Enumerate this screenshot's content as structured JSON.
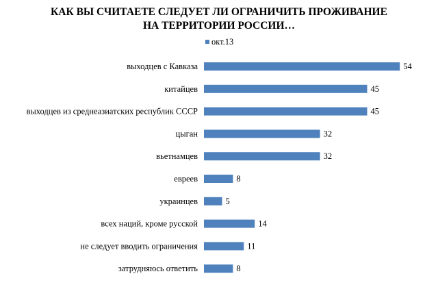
{
  "chart_data": {
    "type": "bar",
    "orientation": "horizontal",
    "title": "КАК ВЫ СЧИТАЕТЕ СЛЕДУЕТ ЛИ ОГРАНИЧИТЬ ПРОЖИВАНИЕ НА ТЕРРИТОРИИ РОССИИ…",
    "title_lines": [
      "КАК ВЫ СЧИТАЕТЕ СЛЕДУЕТ ЛИ ОГРАНИЧИТЬ ПРОЖИВАНИЕ",
      "НА ТЕРРИТОРИИ РОССИИ…"
    ],
    "categories": [
      "выходцев с Кавказа",
      "китайцев",
      "выходцев из среднеазиатских республик СССР",
      "цыган",
      "вьетнамцев",
      "евреев",
      "украинцев",
      "всех наций, кроме русской",
      "не следует вводить ограничения",
      "затрудняюсь ответить"
    ],
    "series": [
      {
        "name": "окт.13",
        "values": [
          54,
          45,
          45,
          32,
          32,
          8,
          5,
          14,
          11,
          8
        ]
      }
    ],
    "xlim": [
      0,
      54
    ],
    "grid": false,
    "legend_position": "top",
    "data_labels": true,
    "bar_color": "#4F81BD"
  }
}
